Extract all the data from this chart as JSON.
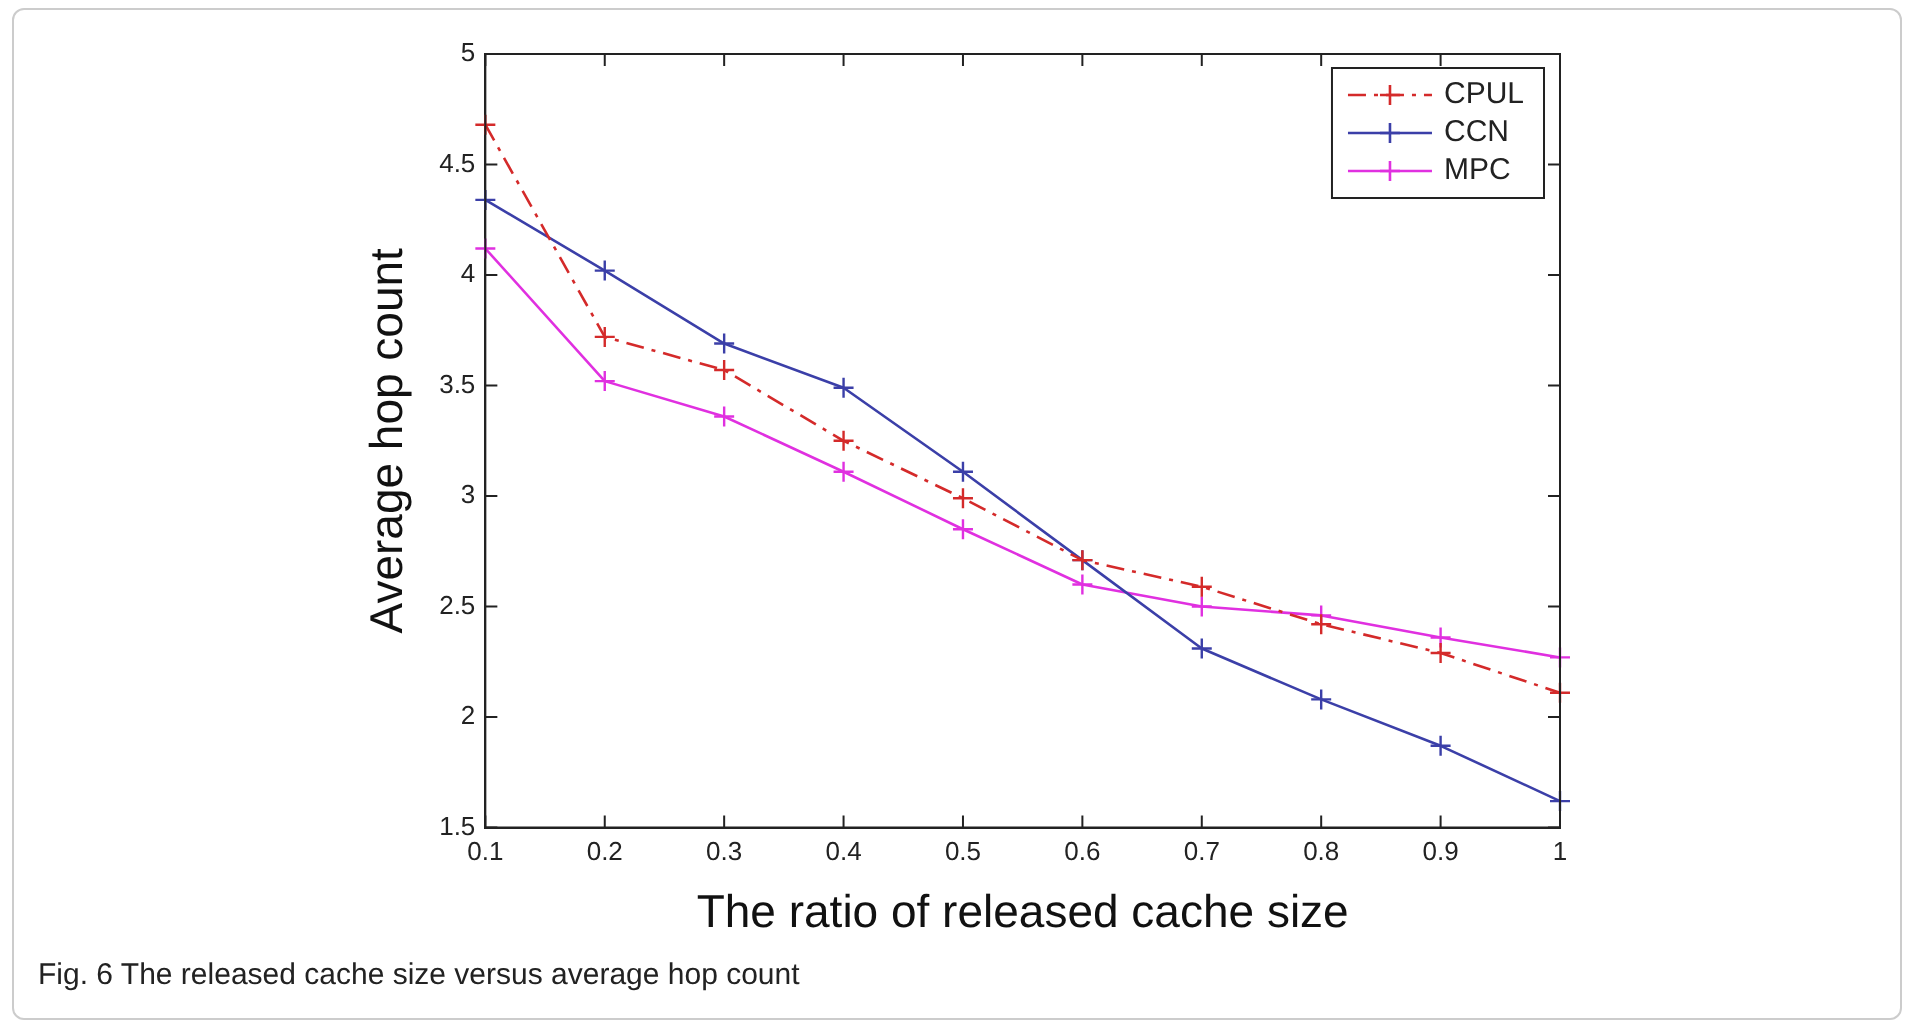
{
  "chart_data": {
    "type": "line",
    "xlabel": "The ratio of released cache size",
    "ylabel": "Average hop count",
    "annotations": [
      "Fig. 6  The released cache size versus average hop count"
    ],
    "x": [
      0.1,
      0.2,
      0.3,
      0.4,
      0.5,
      0.6,
      0.7,
      0.8,
      0.9,
      1
    ],
    "xlim": [
      0.1,
      1
    ],
    "xticks": [
      0.1,
      0.2,
      0.3,
      0.4,
      0.5,
      0.6,
      0.7,
      0.8,
      0.9,
      1
    ],
    "ylim": [
      1.5,
      5
    ],
    "yticks": [
      1.5,
      2,
      2.5,
      3,
      3.5,
      4,
      4.5,
      5
    ],
    "grid": false,
    "legend": "top right",
    "series": [
      {
        "name": "CPUL",
        "color": "#d42a2a",
        "marker": "cross",
        "line_style": "dashed",
        "values": [
          4.68,
          3.72,
          3.57,
          3.25,
          2.99,
          2.71,
          2.59,
          2.42,
          2.29,
          2.11
        ]
      },
      {
        "name": "CCN",
        "color": "#3b3fa8",
        "marker": "cross",
        "line_style": "solid",
        "values": [
          4.34,
          4.02,
          3.69,
          3.49,
          3.11,
          2.71,
          2.31,
          2.08,
          1.87,
          1.62
        ]
      },
      {
        "name": "MPC",
        "color": "#e030e0",
        "marker": "cross",
        "line_style": "solid",
        "values": [
          4.12,
          3.52,
          3.36,
          3.11,
          2.85,
          2.6,
          2.5,
          2.46,
          2.36,
          2.27
        ]
      }
    ]
  }
}
